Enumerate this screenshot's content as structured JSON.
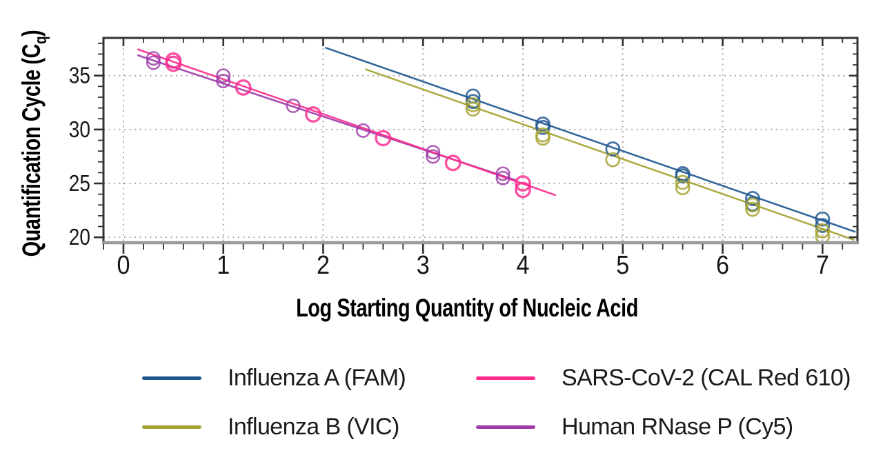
{
  "chart_data": {
    "type": "scatter",
    "title": "",
    "xlabel": "Log Starting Quantity of Nucleic Acid",
    "ylabel": "Quantification Cycle (Cq)",
    "ylabel_parts": {
      "prefix": "Quantification Cycle (C",
      "sub": "q",
      "suffix": ")"
    },
    "xlim": [
      -0.2,
      7.35
    ],
    "ylim": [
      19.5,
      38.5
    ],
    "xticks": [
      0,
      1,
      2,
      3,
      4,
      5,
      6,
      7
    ],
    "yticks": [
      20,
      25,
      30,
      35
    ],
    "x_minor_step": 0.2,
    "y_minor_step": 1,
    "grid": "dotted",
    "grid_color": "#8d8d8d",
    "legend_position": "bottom",
    "series": [
      {
        "name": "Influenza A (FAM)",
        "color": "#1e5791",
        "marker": "open-circle",
        "marker_r": 9.5,
        "marker_w": 2.8,
        "points": [
          [
            3.5,
            33.1
          ],
          [
            3.5,
            32.6
          ],
          [
            4.2,
            30.5
          ],
          [
            4.2,
            30.2
          ],
          [
            4.9,
            28.2
          ],
          [
            5.6,
            25.9
          ],
          [
            5.6,
            25.7
          ],
          [
            6.3,
            23.6
          ],
          [
            6.3,
            23.1
          ],
          [
            7.0,
            21.7
          ],
          [
            7.0,
            21.1
          ]
        ],
        "trendline": {
          "x1": 2.02,
          "y1": 37.6,
          "x2": 7.33,
          "y2": 20.5
        }
      },
      {
        "name": "Influenza B (VIC)",
        "color": "#a6a232",
        "marker": "open-circle",
        "marker_r": 9.5,
        "marker_w": 2.8,
        "points": [
          [
            3.5,
            32.3
          ],
          [
            3.5,
            31.9
          ],
          [
            4.2,
            29.5
          ],
          [
            4.2,
            29.2
          ],
          [
            4.9,
            27.2
          ],
          [
            5.6,
            25.1
          ],
          [
            5.6,
            24.6
          ],
          [
            6.3,
            23.0
          ],
          [
            6.3,
            22.6
          ],
          [
            7.0,
            20.6
          ],
          [
            7.0,
            20.1
          ]
        ],
        "trendline": {
          "x1": 2.42,
          "y1": 35.6,
          "x2": 7.32,
          "y2": 19.75
        }
      },
      {
        "name": "SARS-CoV-2 (CAL Red 610)",
        "color": "#fb2b8d",
        "marker": "open-circle",
        "marker_r": 10.2,
        "marker_w": 3.4,
        "points": [
          [
            0.5,
            36.4
          ],
          [
            0.5,
            36.1
          ],
          [
            1.2,
            33.9
          ],
          [
            1.9,
            31.4
          ],
          [
            2.6,
            29.2
          ],
          [
            3.3,
            26.9
          ],
          [
            4.0,
            25.0
          ],
          [
            4.0,
            24.4
          ]
        ],
        "trendline": {
          "x1": 0.14,
          "y1": 37.45,
          "x2": 4.33,
          "y2": 23.9
        }
      },
      {
        "name": "Human RNase P (Cy5)",
        "color": "#9e3ba8",
        "marker": "open-circle",
        "marker_r": 9.2,
        "marker_w": 2.6,
        "points": [
          [
            0.3,
            36.6
          ],
          [
            0.3,
            36.2
          ],
          [
            1.0,
            35.0
          ],
          [
            1.0,
            34.5
          ],
          [
            1.7,
            32.2
          ],
          [
            2.4,
            29.9
          ],
          [
            3.1,
            27.9
          ],
          [
            3.1,
            27.5
          ],
          [
            3.8,
            25.9
          ],
          [
            3.8,
            25.5
          ]
        ],
        "trendline": {
          "x1": 0.14,
          "y1": 36.9,
          "x2": 3.93,
          "y2": 25.3
        }
      }
    ]
  }
}
